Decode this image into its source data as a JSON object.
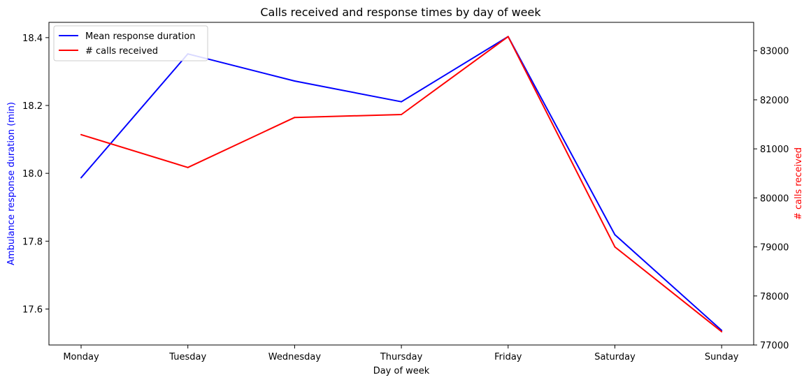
{
  "chart_data": {
    "type": "line",
    "title": "Calls received and response times by day of week",
    "xlabel": "Day of week",
    "categories": [
      "Monday",
      "Tuesday",
      "Wednesday",
      "Thursday",
      "Friday",
      "Saturday",
      "Sunday"
    ],
    "y_left": {
      "label": "Ambulance response duration (min)",
      "color": "#0000ff",
      "lim": [
        17.494,
        18.445
      ],
      "ticks": [
        "17.6",
        "17.8",
        "18.0",
        "18.2",
        "18.4"
      ]
    },
    "y_right": {
      "label": "# calls received",
      "color": "#ff0000",
      "lim": [
        77000,
        83580
      ],
      "ticks": [
        "77000",
        "78000",
        "79000",
        "80000",
        "81000",
        "82000",
        "83000"
      ]
    },
    "series": [
      {
        "name": "Mean response duration",
        "axis": "left",
        "color": "#0000ff",
        "values": [
          17.987,
          18.352,
          18.272,
          18.211,
          18.403,
          17.819,
          17.537
        ]
      },
      {
        "name": "# calls received",
        "axis": "right",
        "color": "#ff0000",
        "values": [
          81290,
          80620,
          81640,
          81700,
          83290,
          79000,
          77270
        ]
      }
    ],
    "legend": "top-left",
    "grid": false
  }
}
